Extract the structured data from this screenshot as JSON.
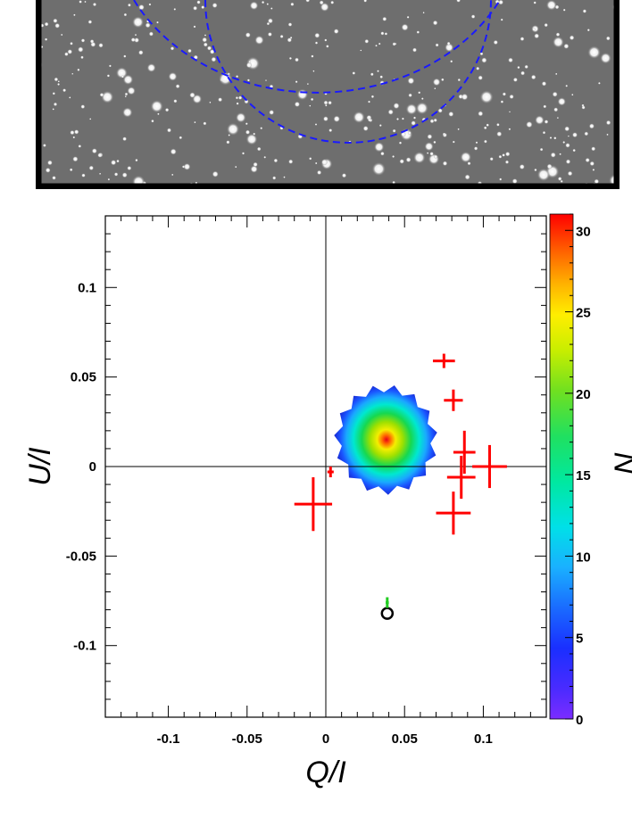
{
  "star_field": {
    "frame_color": "#000000",
    "circle_color": "#1a1aff"
  },
  "chart_data": {
    "type": "scatter",
    "title": "",
    "xlabel": "Q/I",
    "ylabel": "U/I",
    "colorbar_label": "N",
    "xlim": [
      -0.14,
      0.14
    ],
    "ylim": [
      -0.14,
      0.14
    ],
    "x_ticks": [
      -0.1,
      -0.05,
      0,
      0.05,
      0.1
    ],
    "x_tick_labels": [
      "-0.1",
      "-0.05",
      "0",
      "0.05",
      "0.1"
    ],
    "y_ticks": [
      -0.1,
      -0.05,
      0,
      0.05,
      0.1
    ],
    "y_tick_labels": [
      "-0.1",
      "-0.05",
      "0",
      "0.05",
      "0.1"
    ],
    "colorbar_range": [
      0,
      31
    ],
    "colorbar_ticks": [
      0,
      5,
      10,
      15,
      20,
      25,
      30
    ],
    "colorbar_tick_labels": [
      "0",
      "5",
      "10",
      "15",
      "20",
      "25",
      "30"
    ],
    "grid": false,
    "zero_lines": true,
    "density_peak": {
      "x": 0.037,
      "y": 0.017,
      "value": 30
    },
    "series": [
      {
        "marker": "cross",
        "color": "#ff0000",
        "points": [
          {
            "x": -0.008,
            "y": -0.021,
            "xerr": 0.012,
            "yerr": 0.015
          },
          {
            "x": 0.075,
            "y": 0.059,
            "xerr": 0.007,
            "yerr": 0.004
          },
          {
            "x": 0.081,
            "y": 0.037,
            "xerr": 0.006,
            "yerr": 0.006
          },
          {
            "x": 0.088,
            "y": 0.008,
            "xerr": 0.007,
            "yerr": 0.012
          },
          {
            "x": 0.086,
            "y": -0.006,
            "xerr": 0.009,
            "yerr": 0.012
          },
          {
            "x": 0.104,
            "y": -0.0,
            "xerr": 0.011,
            "yerr": 0.012
          },
          {
            "x": 0.081,
            "y": -0.026,
            "xerr": 0.011,
            "yerr": 0.012
          },
          {
            "x": 0.003,
            "y": -0.003,
            "xerr": 0.002,
            "yerr": 0.003
          }
        ]
      },
      {
        "marker": "circle",
        "color": "#000000",
        "points": [
          {
            "x": 0.039,
            "y": -0.082
          }
        ]
      },
      {
        "marker": "cross",
        "color": "#22cc22",
        "points": [
          {
            "x": 0.039,
            "y": -0.076,
            "xerr": 0.001,
            "yerr": 0.003
          }
        ]
      }
    ]
  }
}
